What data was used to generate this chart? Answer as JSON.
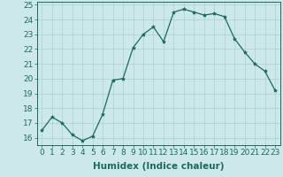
{
  "x": [
    0,
    1,
    2,
    3,
    4,
    5,
    6,
    7,
    8,
    9,
    10,
    11,
    12,
    13,
    14,
    15,
    16,
    17,
    18,
    19,
    20,
    21,
    22,
    23
  ],
  "y": [
    16.5,
    17.4,
    17.0,
    16.2,
    15.8,
    16.1,
    17.6,
    19.9,
    20.0,
    22.1,
    23.0,
    23.5,
    22.5,
    24.5,
    24.7,
    24.5,
    24.3,
    24.4,
    24.2,
    22.7,
    21.8,
    21.0,
    20.5,
    19.2
  ],
  "line_color": "#1a6b5a",
  "marker": "*",
  "marker_size": 3,
  "bg_color": "#cce8e8",
  "grid_color": "#aad0d0",
  "xlabel": "Humidex (Indice chaleur)",
  "ylim": [
    15.5,
    25.2
  ],
  "xlim": [
    -0.5,
    23.5
  ],
  "yticks": [
    16,
    17,
    18,
    19,
    20,
    21,
    22,
    23,
    24,
    25
  ],
  "xticks": [
    0,
    1,
    2,
    3,
    4,
    5,
    6,
    7,
    8,
    9,
    10,
    11,
    12,
    13,
    14,
    15,
    16,
    17,
    18,
    19,
    20,
    21,
    22,
    23
  ],
  "xtick_labels": [
    "0",
    "1",
    "2",
    "3",
    "4",
    "5",
    "6",
    "7",
    "8",
    "9",
    "10",
    "11",
    "12",
    "13",
    "14",
    "15",
    "16",
    "17",
    "18",
    "19",
    "20",
    "21",
    "22",
    "23"
  ],
  "tick_fontsize": 6.5,
  "xlabel_fontsize": 7.5
}
